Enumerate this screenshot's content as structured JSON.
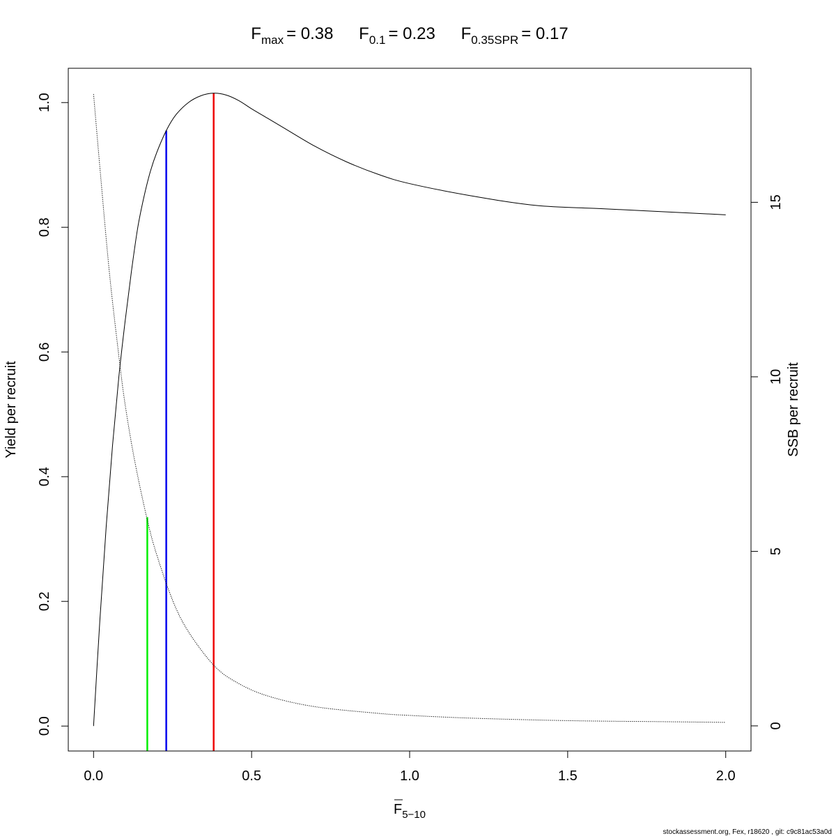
{
  "chart_data": {
    "type": "line",
    "title": {
      "fmax_symbol": "F",
      "fmax_sub": "max",
      "fmax_value": "= 0.38",
      "f01_symbol": "F",
      "f01_sub": "0.1",
      "f01_value": "= 0.23",
      "fspr_symbol": "F",
      "fspr_sub": "0.35SPR",
      "fspr_value": "= 0.17"
    },
    "xlabel": {
      "symbol": "F",
      "sub": "5−10",
      "overbar": true
    },
    "ylabel_left": "Yield per recruit",
    "ylabel_right": "SSB per recruit",
    "xlim": [
      -0.08,
      2.08
    ],
    "ylim_left": [
      -0.04,
      1.055
    ],
    "ylim_right": [
      -0.72,
      18.84
    ],
    "x_ticks": [
      0,
      0.5,
      1,
      1.5,
      2
    ],
    "x_tick_labels": [
      "0.0",
      "0.5",
      "1.0",
      "1.5",
      "2.0"
    ],
    "y_left_ticks": [
      0,
      0.2,
      0.4,
      0.6,
      0.8,
      1.0
    ],
    "y_left_tick_labels": [
      "0.0",
      "0.2",
      "0.4",
      "0.6",
      "0.8",
      "1.0"
    ],
    "y_right_ticks": [
      0,
      5,
      10,
      15
    ],
    "y_right_tick_labels": [
      "0",
      "5",
      "10",
      "15"
    ],
    "grid": false,
    "series": [
      {
        "axis": "left",
        "style": "solid",
        "color": "#000000",
        "x": [
          0,
          0.02,
          0.04,
          0.06,
          0.08,
          0.1,
          0.12,
          0.14,
          0.16,
          0.18,
          0.2,
          0.23,
          0.26,
          0.3,
          0.34,
          0.38,
          0.42,
          0.46,
          0.5,
          0.55,
          0.6,
          0.7,
          0.8,
          0.9,
          1.0,
          1.2,
          1.4,
          1.6,
          1.8,
          2.0
        ],
        "y": [
          0.0,
          0.17,
          0.32,
          0.45,
          0.56,
          0.65,
          0.73,
          0.8,
          0.85,
          0.89,
          0.92,
          0.955,
          0.98,
          1.0,
          1.011,
          1.015,
          1.012,
          1.003,
          0.99,
          0.975,
          0.96,
          0.93,
          0.905,
          0.885,
          0.87,
          0.85,
          0.835,
          0.83,
          0.825,
          0.82
        ]
      },
      {
        "axis": "right",
        "style": "dotted",
        "color": "#000000",
        "x": [
          0,
          0.02,
          0.05,
          0.08,
          0.1,
          0.13,
          0.17,
          0.2,
          0.25,
          0.3,
          0.38,
          0.45,
          0.55,
          0.7,
          0.9,
          1.0,
          1.2,
          1.5,
          1.8,
          2.0
        ],
        "y": [
          18.1,
          16.0,
          13.0,
          10.6,
          9.2,
          7.6,
          5.9,
          4.9,
          3.6,
          2.7,
          1.74,
          1.26,
          0.86,
          0.55,
          0.36,
          0.3,
          0.22,
          0.15,
          0.12,
          0.1
        ]
      }
    ],
    "reference_lines": [
      {
        "name": "F0.35SPR",
        "x": 0.17,
        "ymax_left": 0.335,
        "color": "#00ee00"
      },
      {
        "name": "F0.1",
        "x": 0.23,
        "ymax_left": 0.955,
        "color": "#0000ee"
      },
      {
        "name": "Fmax",
        "x": 0.38,
        "ymax_left": 1.015,
        "color": "#ee0000"
      }
    ]
  },
  "footer_text": "stockassessment.org, Fex, r18620 , git: c9c81ac53a0d"
}
